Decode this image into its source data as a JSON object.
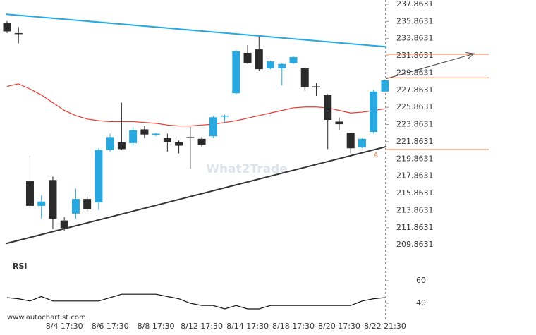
{
  "chart_data": {
    "type": "candlestick",
    "categories": [
      null,
      null,
      null,
      null,
      null,
      "8/4 17:30",
      null,
      null,
      null,
      "8/6 17:30",
      null,
      null,
      null,
      "8/8 17:30",
      null,
      null,
      null,
      "8/12 17:30",
      null,
      null,
      null,
      "8/14 17:30",
      null,
      null,
      null,
      "8/18 17:30",
      null,
      null,
      null,
      "8/20 17:30",
      null,
      null,
      null,
      "8/22 21:30"
    ],
    "open": [
      235.7,
      234.5,
      217.3,
      214.4,
      217.4,
      212.7,
      213.5,
      215.2,
      214.8,
      220.9,
      221.8,
      221.7,
      223.3,
      222.6,
      222.3,
      221.8,
      222.4,
      222.2,
      222.5,
      224.8,
      227.5,
      232.2,
      232.6,
      230.4,
      230.4,
      231.0,
      230.4,
      228.3,
      227.3,
      224.2,
      222.9,
      221.2,
      223.0,
      227.7
    ],
    "high": [
      235.9,
      235.2,
      220.5,
      215.6,
      217.8,
      213.1,
      216.4,
      215.5,
      221.1,
      222.8,
      226.4,
      223.6,
      223.7,
      222.9,
      222.8,
      222.0,
      223.6,
      222.4,
      224.9,
      225.0,
      232.5,
      233.1,
      234.2,
      231.3,
      231.0,
      231.8,
      230.5,
      228.7,
      227.4,
      224.7,
      222.9,
      222.3,
      227.9,
      229.1
    ],
    "low": [
      234.5,
      233.3,
      214.1,
      212.9,
      211.7,
      211.5,
      212.9,
      213.7,
      213.9,
      220.7,
      220.9,
      221.4,
      222.3,
      222.5,
      220.7,
      220.5,
      218.7,
      221.3,
      222.3,
      224.1,
      227.4,
      230.9,
      230.1,
      230.3,
      228.4,
      230.9,
      227.8,
      227.2,
      221.0,
      223.2,
      220.5,
      221.1,
      222.8,
      227.7
    ],
    "close": [
      234.7,
      234.4,
      214.4,
      214.9,
      212.9,
      211.8,
      215.2,
      214.0,
      220.9,
      222.4,
      221.0,
      223.2,
      222.7,
      222.8,
      221.8,
      221.4,
      222.3,
      221.5,
      224.7,
      224.9,
      232.4,
      231.0,
      230.3,
      231.2,
      230.9,
      231.7,
      228.2,
      228.2,
      224.4,
      223.9,
      221.1,
      222.2,
      227.7,
      229.0
    ],
    "up_color": "#29a8e0",
    "down_color": "#2b2b2b",
    "moving_average": {
      "color": "#e8392f",
      "values": [
        228.3,
        228.6,
        228.0,
        227.3,
        226.4,
        225.5,
        224.9,
        224.5,
        224.3,
        224.2,
        224.2,
        224.2,
        224.1,
        224.0,
        223.8,
        223.7,
        223.7,
        223.8,
        223.9,
        224.1,
        224.3,
        224.6,
        224.9,
        225.2,
        225.5,
        225.8,
        225.9,
        225.9,
        225.8,
        225.5,
        225.2,
        225.3,
        225.5,
        225.7
      ]
    },
    "ylim": [
      208.4,
      238.35
    ],
    "yticks": [
      209.8631,
      211.8631,
      213.8631,
      215.8631,
      217.8631,
      219.8631,
      221.8631,
      223.8631,
      225.8631,
      227.8631,
      229.8631,
      231.8631,
      233.8631,
      235.8631,
      237.8631
    ],
    "grid": false,
    "trendlines": [
      {
        "color": "#25a9e0",
        "values": [
          236.7,
          232.9
        ]
      },
      {
        "color": "#333333",
        "values": [
          210.0,
          221.3
        ]
      }
    ],
    "levels": {
      "color": "#f07a3c",
      "values": [
        232.03,
        229.3,
        220.95
      ]
    },
    "projection": {
      "color": "#444444",
      "values": [
        229.2,
        232.1
      ]
    },
    "annotation": "A",
    "watermark": "What2Trade",
    "source": "www.autochartist.com",
    "rsi": {
      "title": "RSI",
      "color": "#111111",
      "ylim": [
        32,
        64
      ],
      "yticks": [
        60,
        40
      ],
      "values": [
        45,
        44,
        42,
        46,
        42,
        42,
        42,
        42,
        42,
        45,
        48,
        48,
        48,
        48,
        46,
        44,
        40,
        38,
        38,
        35,
        38,
        35,
        35,
        38,
        38,
        38,
        38,
        38,
        38,
        38,
        38,
        42,
        44,
        45
      ]
    }
  }
}
